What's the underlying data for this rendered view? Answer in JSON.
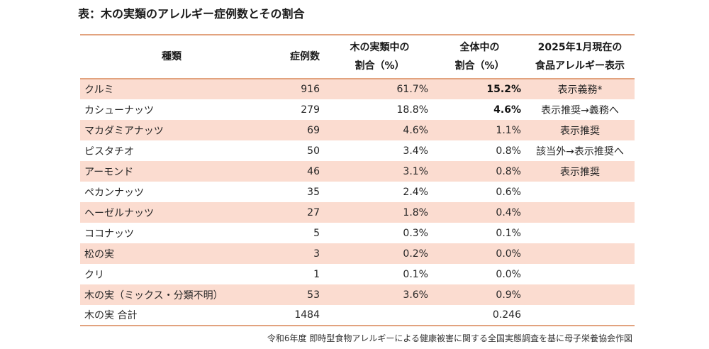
{
  "title": "表：木の実類のアレルギー症例数とその割合",
  "table": {
    "headers": {
      "type": "種類",
      "cases": "症例数",
      "share_nut_line1": "木の実類中の",
      "share_nut_line2": "割合（%）",
      "share_all_line1": "全体中の",
      "share_all_line2": "割合（%）",
      "label_line1": "2025年1月現在の",
      "label_line2": "食品アレルギー表示"
    },
    "rows": [
      {
        "name": "クルミ",
        "cases": "916",
        "share_nut": "61.7%",
        "share_all": "15.2%",
        "label": "表示義務*"
      },
      {
        "name": "カシューナッツ",
        "cases": "279",
        "share_nut": "18.8%",
        "share_all": "4.6%",
        "label": "表示推奨→義務へ"
      },
      {
        "name": "マカダミアナッツ",
        "cases": "69",
        "share_nut": "4.6%",
        "share_all": "1.1%",
        "label": "表示推奨"
      },
      {
        "name": "ピスタチオ",
        "cases": "50",
        "share_nut": "3.4%",
        "share_all": "0.8%",
        "label": "該当外→表示推奨へ"
      },
      {
        "name": "アーモンド",
        "cases": "46",
        "share_nut": "3.1%",
        "share_all": "0.8%",
        "label": "表示推奨"
      },
      {
        "name": "ペカンナッツ",
        "cases": "35",
        "share_nut": "2.4%",
        "share_all": "0.6%",
        "label": ""
      },
      {
        "name": "ヘーゼルナッツ",
        "cases": "27",
        "share_nut": "1.8%",
        "share_all": "0.4%",
        "label": ""
      },
      {
        "name": "ココナッツ",
        "cases": "5",
        "share_nut": "0.3%",
        "share_all": "0.1%",
        "label": ""
      },
      {
        "name": "松の実",
        "cases": "3",
        "share_nut": "0.2%",
        "share_all": "0.0%",
        "label": ""
      },
      {
        "name": "クリ",
        "cases": "1",
        "share_nut": "0.1%",
        "share_all": "0.0%",
        "label": ""
      },
      {
        "name": "木の実（ミックス・分類不明）",
        "cases": "53",
        "share_nut": "3.6%",
        "share_all": "0.9%",
        "label": ""
      }
    ],
    "total": {
      "name": "木の実 合計",
      "cases": "1484",
      "share_nut": "",
      "share_all": "0.246",
      "label": ""
    }
  },
  "source": "令和6年度 即時型食物アレルギーによる健康被害に関する全国実態調査を基に母子栄養協会作図",
  "colors": {
    "row_shade": "#fbdcd0",
    "rule_line": "#e2a37f"
  }
}
